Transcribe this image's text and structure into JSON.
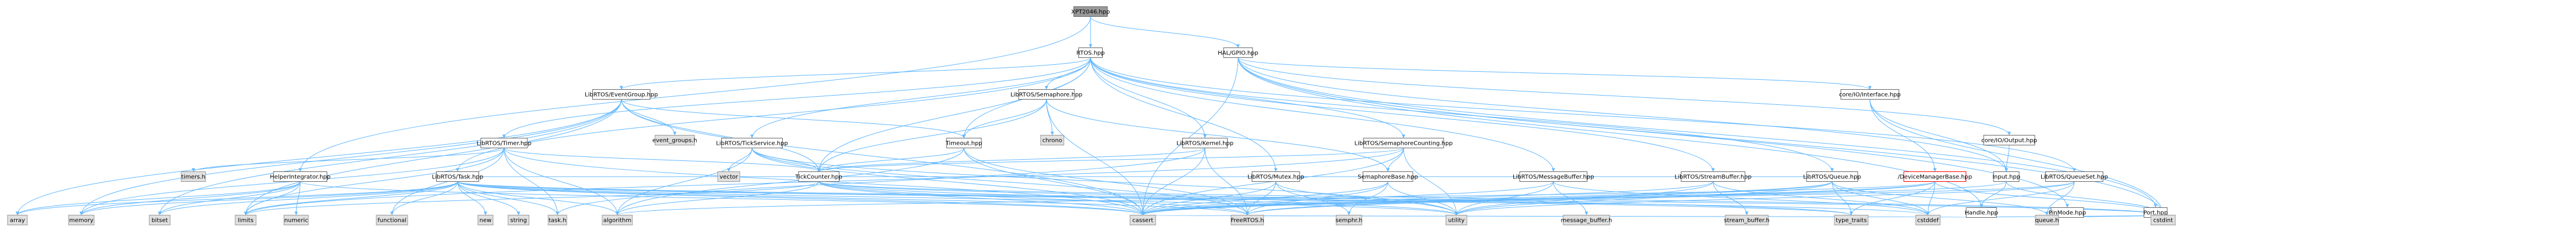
{
  "nodes": [
    {
      "id": "root",
      "label": "XPT2046.hpp",
      "kind": "root"
    },
    {
      "id": "rtos",
      "label": "RTOS.hpp",
      "kind": "normal"
    },
    {
      "id": "halgpio",
      "label": "HAL/GPIO.hpp",
      "kind": "normal"
    },
    {
      "id": "eventgroup",
      "label": "LibRTOS/EventGroup.hpp",
      "kind": "normal"
    },
    {
      "id": "semaphore",
      "label": "LibRTOS/Semaphore.hpp",
      "kind": "normal"
    },
    {
      "id": "ifacebase",
      "label": "core/IO/Interface.hpp",
      "kind": "normal"
    },
    {
      "id": "output",
      "label": "core/IO/Output.hpp",
      "kind": "normal"
    },
    {
      "id": "timer",
      "label": "LibRTOS/Timer.hpp",
      "kind": "normal"
    },
    {
      "id": "tickservice",
      "label": "LibRTOS/TickService.hpp",
      "kind": "normal"
    },
    {
      "id": "timeout",
      "label": "Timeout.hpp",
      "kind": "normal"
    },
    {
      "id": "kernel",
      "label": "LibRTOS/Kernel.hpp",
      "kind": "normal"
    },
    {
      "id": "semcounting",
      "label": "LibRTOS/SemaphoreCounting.hpp",
      "kind": "normal"
    },
    {
      "id": "input",
      "label": "Input.hpp",
      "kind": "normal"
    },
    {
      "id": "helperintegrator",
      "label": "HelperIntegrator.hpp",
      "kind": "normal"
    },
    {
      "id": "task",
      "label": "LibRTOS/Task.hpp",
      "kind": "normal"
    },
    {
      "id": "tickcounter",
      "label": "TickCounter.hpp",
      "kind": "normal"
    },
    {
      "id": "mutex",
      "label": "LibRTOS/Mutex.hpp",
      "kind": "normal"
    },
    {
      "id": "semaphorebase",
      "label": "SemaphoreBase.hpp",
      "kind": "normal"
    },
    {
      "id": "messagebuffer",
      "label": "LibRTOS/MessageBuffer.hpp",
      "kind": "normal"
    },
    {
      "id": "streambuffer",
      "label": "LibRTOS/StreamBuffer.hpp",
      "kind": "normal"
    },
    {
      "id": "queue",
      "label": "LibRTOS/Queue.hpp",
      "kind": "normal"
    },
    {
      "id": "devmgr",
      "label": "/DeviceManagerBase.hpp",
      "kind": "error"
    },
    {
      "id": "queueset",
      "label": "LibRTOS/QueueSet.hpp",
      "kind": "normal"
    },
    {
      "id": "handle",
      "label": "Handle.hpp",
      "kind": "normal"
    },
    {
      "id": "pinmode",
      "label": "PinMode.hpp",
      "kind": "normal"
    },
    {
      "id": "port",
      "label": "Port.hpp",
      "kind": "normal"
    },
    {
      "id": "eventgroups_h",
      "label": "event_groups.h",
      "kind": "external"
    },
    {
      "id": "chrono",
      "label": "chrono",
      "kind": "external"
    },
    {
      "id": "timers_h",
      "label": "timers.h",
      "kind": "external"
    },
    {
      "id": "vector",
      "label": "vector",
      "kind": "external"
    },
    {
      "id": "array",
      "label": "array",
      "kind": "external"
    },
    {
      "id": "memory",
      "label": "memory",
      "kind": "external"
    },
    {
      "id": "bitset",
      "label": "bitset",
      "kind": "external"
    },
    {
      "id": "limits",
      "label": "limits",
      "kind": "external"
    },
    {
      "id": "numeric",
      "label": "numeric",
      "kind": "external"
    },
    {
      "id": "functional",
      "label": "functional",
      "kind": "external"
    },
    {
      "id": "new",
      "label": "new",
      "kind": "external"
    },
    {
      "id": "string",
      "label": "string",
      "kind": "external"
    },
    {
      "id": "task_h",
      "label": "task.h",
      "kind": "external"
    },
    {
      "id": "algorithm",
      "label": "algorithm",
      "kind": "external"
    },
    {
      "id": "cassert",
      "label": "cassert",
      "kind": "external"
    },
    {
      "id": "freertos_h",
      "label": "FreeRTOS.h",
      "kind": "external"
    },
    {
      "id": "semphr_h",
      "label": "semphr.h",
      "kind": "external"
    },
    {
      "id": "utility",
      "label": "utility",
      "kind": "external"
    },
    {
      "id": "msgbuf_h",
      "label": "message_buffer.h",
      "kind": "external"
    },
    {
      "id": "strbuf_h",
      "label": "stream_buffer.h",
      "kind": "external"
    },
    {
      "id": "type_traits",
      "label": "type_traits",
      "kind": "external"
    },
    {
      "id": "cstddef",
      "label": "cstddef",
      "kind": "external"
    },
    {
      "id": "queue_h",
      "label": "queue.h",
      "kind": "external"
    },
    {
      "id": "cstdint",
      "label": "cstdint",
      "kind": "external"
    }
  ],
  "edges": [
    [
      "root",
      "rtos"
    ],
    [
      "root",
      "halgpio"
    ],
    [
      "root",
      "helperintegrator"
    ],
    [
      "rtos",
      "eventgroup"
    ],
    [
      "rtos",
      "semaphore"
    ],
    [
      "rtos",
      "timer"
    ],
    [
      "rtos",
      "tickservice"
    ],
    [
      "rtos",
      "timeout"
    ],
    [
      "rtos",
      "kernel"
    ],
    [
      "rtos",
      "semcounting"
    ],
    [
      "rtos",
      "task"
    ],
    [
      "rtos",
      "tickcounter"
    ],
    [
      "rtos",
      "mutex"
    ],
    [
      "rtos",
      "messagebuffer"
    ],
    [
      "rtos",
      "streambuffer"
    ],
    [
      "rtos",
      "queue"
    ],
    [
      "rtos",
      "queueset"
    ],
    [
      "halgpio",
      "ifacebase"
    ],
    [
      "halgpio",
      "output"
    ],
    [
      "halgpio",
      "input"
    ],
    [
      "halgpio",
      "handle"
    ],
    [
      "halgpio",
      "pinmode"
    ],
    [
      "halgpio",
      "port"
    ],
    [
      "halgpio",
      "cstdint"
    ],
    [
      "halgpio",
      "cassert"
    ],
    [
      "eventgroup",
      "eventgroups_h"
    ],
    [
      "eventgroup",
      "timeout"
    ],
    [
      "eventgroup",
      "tickcounter"
    ],
    [
      "eventgroup",
      "cassert"
    ],
    [
      "eventgroup",
      "bitset"
    ],
    [
      "eventgroup",
      "limits"
    ],
    [
      "eventgroup",
      "array"
    ],
    [
      "eventgroup",
      "memory"
    ],
    [
      "semaphore",
      "semaphorebase"
    ],
    [
      "semaphore",
      "chrono"
    ],
    [
      "semaphore",
      "timeout"
    ],
    [
      "semaphore",
      "tickcounter"
    ],
    [
      "semaphore",
      "cassert"
    ],
    [
      "ifacebase",
      "devmgr"
    ],
    [
      "ifacebase",
      "input"
    ],
    [
      "ifacebase",
      "cstdint"
    ],
    [
      "output",
      "input"
    ],
    [
      "timer",
      "timers_h"
    ],
    [
      "timer",
      "memory"
    ],
    [
      "timer",
      "functional"
    ],
    [
      "timer",
      "task_h"
    ],
    [
      "timer",
      "tickcounter"
    ],
    [
      "timer",
      "cassert"
    ],
    [
      "timer",
      "algorithm"
    ],
    [
      "timer",
      "limits"
    ],
    [
      "tickservice",
      "vector"
    ],
    [
      "tickservice",
      "tickcounter"
    ],
    [
      "tickservice",
      "algorithm"
    ],
    [
      "tickservice",
      "cassert"
    ],
    [
      "tickservice",
      "freertos_h"
    ],
    [
      "tickservice",
      "utility"
    ],
    [
      "timeout",
      "tickcounter"
    ],
    [
      "timeout",
      "cassert"
    ],
    [
      "timeout",
      "freertos_h"
    ],
    [
      "timeout",
      "algorithm"
    ],
    [
      "kernel",
      "tickcounter"
    ],
    [
      "kernel",
      "task_h"
    ],
    [
      "kernel",
      "cassert"
    ],
    [
      "kernel",
      "freertos_h"
    ],
    [
      "semcounting",
      "semaphorebase"
    ],
    [
      "semcounting",
      "tickcounter"
    ],
    [
      "semcounting",
      "cassert"
    ],
    [
      "semcounting",
      "limits"
    ],
    [
      "semcounting",
      "utility"
    ],
    [
      "input",
      "handle"
    ],
    [
      "input",
      "cstdint"
    ],
    [
      "input",
      "cassert"
    ],
    [
      "helperintegrator",
      "array"
    ],
    [
      "helperintegrator",
      "limits"
    ],
    [
      "helperintegrator",
      "numeric"
    ],
    [
      "helperintegrator",
      "memory"
    ],
    [
      "helperintegrator",
      "bitset"
    ],
    [
      "helperintegrator",
      "cassert"
    ],
    [
      "task",
      "functional"
    ],
    [
      "task",
      "new"
    ],
    [
      "task",
      "string"
    ],
    [
      "task",
      "task_h"
    ],
    [
      "task",
      "tickcounter"
    ],
    [
      "task",
      "algorithm"
    ],
    [
      "task",
      "cassert"
    ],
    [
      "task",
      "freertos_h"
    ],
    [
      "task",
      "memory"
    ],
    [
      "task",
      "limits"
    ],
    [
      "task",
      "utility"
    ],
    [
      "task",
      "type_traits"
    ],
    [
      "task",
      "cstddef"
    ],
    [
      "task",
      "cstdint"
    ],
    [
      "task",
      "array"
    ],
    [
      "task",
      "bitset"
    ],
    [
      "tickcounter",
      "cassert"
    ],
    [
      "tickcounter",
      "freertos_h"
    ],
    [
      "tickcounter",
      "utility"
    ],
    [
      "tickcounter",
      "limits"
    ],
    [
      "tickcounter",
      "algorithm"
    ],
    [
      "tickcounter",
      "type_traits"
    ],
    [
      "tickcounter",
      "cstdint"
    ],
    [
      "mutex",
      "semphr_h"
    ],
    [
      "mutex",
      "tickcounter"
    ],
    [
      "mutex",
      "cassert"
    ],
    [
      "mutex",
      "freertos_h"
    ],
    [
      "mutex",
      "utility"
    ],
    [
      "semaphorebase",
      "semphr_h"
    ],
    [
      "semaphorebase",
      "cassert"
    ],
    [
      "semaphorebase",
      "freertos_h"
    ],
    [
      "semaphorebase",
      "utility"
    ],
    [
      "semaphorebase",
      "tickcounter"
    ],
    [
      "messagebuffer",
      "msgbuf_h"
    ],
    [
      "messagebuffer",
      "tickcounter"
    ],
    [
      "messagebuffer",
      "cassert"
    ],
    [
      "messagebuffer",
      "cstddef"
    ],
    [
      "messagebuffer",
      "utility"
    ],
    [
      "streambuffer",
      "strbuf_h"
    ],
    [
      "streambuffer",
      "tickcounter"
    ],
    [
      "streambuffer",
      "cassert"
    ],
    [
      "streambuffer",
      "cstddef"
    ],
    [
      "streambuffer",
      "utility"
    ],
    [
      "queue",
      "queue_h"
    ],
    [
      "queue",
      "tickcounter"
    ],
    [
      "queue",
      "cassert"
    ],
    [
      "queue",
      "type_traits"
    ],
    [
      "queue",
      "cstddef"
    ],
    [
      "queue",
      "utility"
    ],
    [
      "queue",
      "freertos_h"
    ],
    [
      "devmgr",
      "cassert"
    ],
    [
      "devmgr",
      "freertos_h"
    ],
    [
      "devmgr",
      "cstddef"
    ],
    [
      "devmgr",
      "cstdint"
    ],
    [
      "devmgr",
      "type_traits"
    ],
    [
      "devmgr",
      "algorithm"
    ],
    [
      "queueset",
      "queue_h"
    ],
    [
      "queueset",
      "cassert"
    ],
    [
      "queueset",
      "cstddef"
    ],
    [
      "queueset",
      "utility"
    ],
    [
      "handle",
      "cstdint"
    ],
    [
      "handle",
      "cassert"
    ],
    [
      "port",
      "cstdint"
    ],
    [
      "pinmode",
      "cstdint"
    ]
  ]
}
